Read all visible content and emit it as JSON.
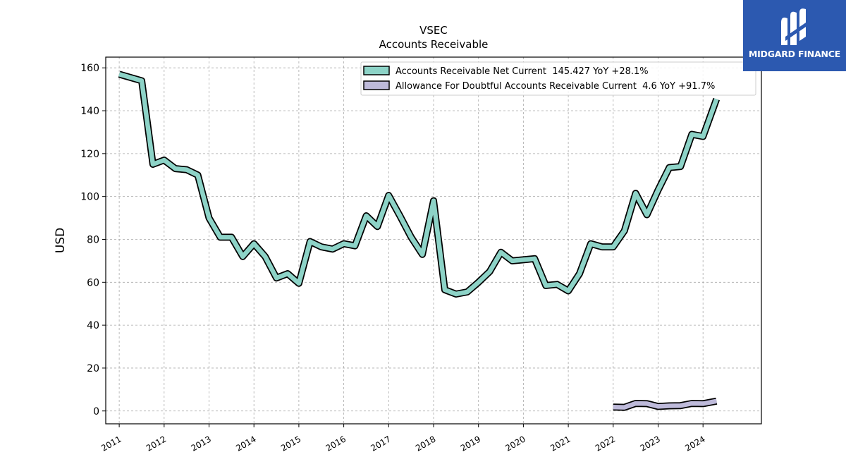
{
  "logo": {
    "text": "MIDGARD FINANCE",
    "icon": "mf-monogram-icon",
    "bg_color": "#2c59b0"
  },
  "chart_data": {
    "type": "line",
    "title": "VSEC",
    "subtitle": "Accounts Receivable",
    "xlabel": "",
    "ylabel": "USD",
    "xlim": [
      2010.7,
      2025.3
    ],
    "ylim": [
      -6,
      165
    ],
    "yticks": [
      0,
      20,
      40,
      60,
      80,
      100,
      120,
      140,
      160
    ],
    "xticks": [
      "2011",
      "2012",
      "2013",
      "2014",
      "2015",
      "2016",
      "2017",
      "2018",
      "2019",
      "2020",
      "2021",
      "2022",
      "2023",
      "2024"
    ],
    "grid": true,
    "legend_position": "top-right",
    "series": [
      {
        "name": "Accounts Receivable Net Current",
        "legend": "Accounts Receivable Net Current  145.427 YoY +28.1%",
        "color": "#8dd3c7",
        "x": [
          2011.0,
          2011.5,
          2011.75,
          2012.0,
          2012.25,
          2012.5,
          2012.75,
          2013.0,
          2013.25,
          2013.5,
          2013.75,
          2014.0,
          2014.25,
          2014.5,
          2014.75,
          2015.0,
          2015.25,
          2015.5,
          2015.75,
          2016.0,
          2016.25,
          2016.5,
          2016.75,
          2017.0,
          2017.25,
          2017.5,
          2017.75,
          2018.0,
          2018.25,
          2018.5,
          2018.75,
          2019.0,
          2019.25,
          2019.5,
          2019.75,
          2020.0,
          2020.25,
          2020.5,
          2020.75,
          2021.0,
          2021.25,
          2021.5,
          2021.75,
          2022.0,
          2022.25,
          2022.5,
          2022.75,
          2023.0,
          2023.25,
          2023.5,
          2023.75,
          2024.0,
          2024.3
        ],
        "values": [
          157,
          154,
          115,
          117,
          113,
          112.5,
          110,
          90,
          81,
          81,
          72,
          78,
          72,
          62,
          64,
          59.5,
          79,
          76.5,
          75.5,
          78,
          77,
          91,
          86,
          100.5,
          91,
          81,
          73,
          98,
          56.5,
          54.5,
          55.5,
          60,
          65,
          74,
          70,
          70.5,
          71,
          58.5,
          59,
          56,
          64,
          78,
          76.5,
          76.5,
          84,
          101.5,
          91.5,
          103,
          113.5,
          114,
          129,
          128,
          145.4
        ]
      },
      {
        "name": "Allowance For Doubtful Accounts Receivable Current",
        "legend": "Allowance For Doubtful Accounts Receivable Current  4.6 YoY +91.7%",
        "color": "#bebada",
        "x": [
          2022.0,
          2022.25,
          2022.5,
          2022.75,
          2023.0,
          2023.25,
          2023.5,
          2023.75,
          2024.0,
          2024.3
        ],
        "values": [
          1.8,
          1.7,
          3.5,
          3.4,
          2.1,
          2.4,
          2.5,
          3.5,
          3.4,
          4.6
        ]
      }
    ]
  }
}
